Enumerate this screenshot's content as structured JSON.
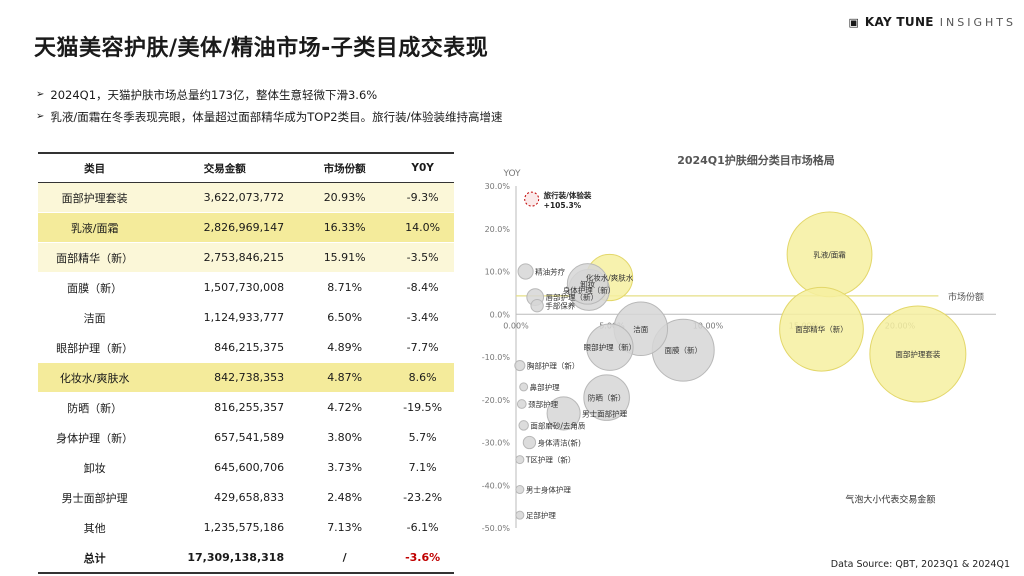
{
  "title": "天猫美容护肤/美体/精油市场-子类目成交表现",
  "brand": {
    "name": "KAY TUNE",
    "sub": "INSIGHTS",
    "icon": "kt-logo-icon"
  },
  "bullets": [
    "2024Q1，天猫护肤市场总量约173亿，整体生意轻微下滑3.6%",
    "乳液/面霜在冬季表现亮眼，体量超过面部精华成为TOP2类目。旅行装/体验装维持高增速"
  ],
  "bullet_marker": "➢",
  "table": {
    "headers": [
      "类目",
      "交易金额",
      "市场份额",
      "Y0Y"
    ],
    "rows": [
      {
        "cat": "面部护理套装",
        "amount": "3,622,073,772",
        "share": "20.93%",
        "yoy": "-9.3%",
        "hl": "light"
      },
      {
        "cat": "乳液/面霜",
        "amount": "2,826,969,147",
        "share": "16.33%",
        "yoy": "14.0%",
        "hl": "strong"
      },
      {
        "cat": "面部精华（新）",
        "amount": "2,753,846,215",
        "share": "15.91%",
        "yoy": "-3.5%",
        "hl": "light"
      },
      {
        "cat": "面膜（新）",
        "amount": "1,507,730,008",
        "share": "8.71%",
        "yoy": "-8.4%",
        "hl": ""
      },
      {
        "cat": "洁面",
        "amount": "1,124,933,777",
        "share": "6.50%",
        "yoy": "-3.4%",
        "hl": ""
      },
      {
        "cat": "眼部护理（新）",
        "amount": "846,215,375",
        "share": "4.89%",
        "yoy": "-7.7%",
        "hl": ""
      },
      {
        "cat": "化妆水/爽肤水",
        "amount": "842,738,353",
        "share": "4.87%",
        "yoy": "8.6%",
        "hl": "strong"
      },
      {
        "cat": "防晒（新）",
        "amount": "816,255,357",
        "share": "4.72%",
        "yoy": "-19.5%",
        "hl": ""
      },
      {
        "cat": "身体护理（新）",
        "amount": "657,541,589",
        "share": "3.80%",
        "yoy": "5.7%",
        "hl": ""
      },
      {
        "cat": "卸妆",
        "amount": "645,600,706",
        "share": "3.73%",
        "yoy": "7.1%",
        "hl": ""
      },
      {
        "cat": "男士面部护理",
        "amount": "429,658,833",
        "share": "2.48%",
        "yoy": "-23.2%",
        "hl": ""
      },
      {
        "cat": "其他",
        "amount": "1,235,575,186",
        "share": "7.13%",
        "yoy": "-6.1%",
        "hl": ""
      }
    ],
    "total": {
      "cat": "总计",
      "amount": "17,309,138,318",
      "share": "/",
      "yoy": "-3.6%"
    }
  },
  "chart_data": {
    "type": "scatter",
    "title": "2024Q1护肤细分类目市场格局",
    "xlabel": "市场份额",
    "ylabel": "YOY",
    "size_note": "气泡大小代表交易金额",
    "xlim": [
      0,
      0.25
    ],
    "ylim": [
      -0.5,
      0.3
    ],
    "x_ticks": [
      "0.00%",
      "5.00%",
      "10.00%",
      "15.00%",
      "20.00%"
    ],
    "x_tick_values": [
      0,
      0.05,
      0.1,
      0.15,
      0.2
    ],
    "y_ticks": [
      "30.0%",
      "20.0%",
      "10.0%",
      "0.0%",
      "-10.0%",
      "-20.0%",
      "-30.0%",
      "-40.0%",
      "-50.0%"
    ],
    "y_tick_values": [
      0.3,
      0.2,
      0.1,
      0,
      -0.1,
      -0.2,
      -0.3,
      -0.4,
      -0.5
    ],
    "colors": {
      "highlight_fill": "#f6f0a0",
      "highlight_stroke": "#e3d76a",
      "normal_fill": "#d6d6d6",
      "normal_stroke": "#b8b8b8",
      "outlier_stroke": "#c00000",
      "ref_line": "#e6df86"
    },
    "reference_line_y": 0.043,
    "points": [
      {
        "label": "面部护理套装",
        "x": 0.2093,
        "y": -0.093,
        "amount": 3622073772,
        "hl": true
      },
      {
        "label": "乳液/面霜",
        "x": 0.1633,
        "y": 0.14,
        "amount": 2826969147,
        "hl": true
      },
      {
        "label": "面部精华（新）",
        "x": 0.1591,
        "y": -0.035,
        "amount": 2753846215,
        "hl": true
      },
      {
        "label": "面膜（新）",
        "x": 0.0871,
        "y": -0.084,
        "amount": 1507730008,
        "hl": false
      },
      {
        "label": "洁面",
        "x": 0.065,
        "y": -0.034,
        "amount": 1124933777,
        "hl": false
      },
      {
        "label": "眼部护理（新）",
        "x": 0.0489,
        "y": -0.077,
        "amount": 846215375,
        "hl": false
      },
      {
        "label": "化妆水/爽肤水",
        "x": 0.0487,
        "y": 0.086,
        "amount": 842738353,
        "hl": true
      },
      {
        "label": "防晒（新）",
        "x": 0.0472,
        "y": -0.195,
        "amount": 816255357,
        "hl": false
      },
      {
        "label": "身体护理（新）",
        "x": 0.038,
        "y": 0.057,
        "amount": 657541589,
        "hl": false
      },
      {
        "label": "卸妆",
        "x": 0.0373,
        "y": 0.071,
        "amount": 645600706,
        "hl": false
      },
      {
        "label": "男士面部护理",
        "x": 0.0248,
        "y": -0.232,
        "amount": 429658833,
        "hl": false
      },
      {
        "label": "精油芳疗",
        "x": 0.005,
        "y": 0.1,
        "amount": 90000000,
        "hl": false
      },
      {
        "label": "唇部护理（新）",
        "x": 0.01,
        "y": 0.04,
        "amount": 110000000,
        "hl": false
      },
      {
        "label": "手部保养",
        "x": 0.011,
        "y": 0.02,
        "amount": 60000000,
        "hl": false
      },
      {
        "label": "胸部护理（新）",
        "x": 0.002,
        "y": -0.12,
        "amount": 40000000,
        "hl": false
      },
      {
        "label": "鼻部护理",
        "x": 0.004,
        "y": -0.17,
        "amount": 25000000,
        "hl": false
      },
      {
        "label": "颈部护理",
        "x": 0.003,
        "y": -0.21,
        "amount": 30000000,
        "hl": false
      },
      {
        "label": "面部磨砂/去角质",
        "x": 0.004,
        "y": -0.26,
        "amount": 35000000,
        "hl": false
      },
      {
        "label": "身体清洁(新)",
        "x": 0.007,
        "y": -0.3,
        "amount": 60000000,
        "hl": false
      },
      {
        "label": "T区护理（新）",
        "x": 0.002,
        "y": -0.34,
        "amount": 20000000,
        "hl": false
      },
      {
        "label": "男士身体护理",
        "x": 0.002,
        "y": -0.41,
        "amount": 15000000,
        "hl": false
      },
      {
        "label": "足部护理",
        "x": 0.002,
        "y": -0.47,
        "amount": 15000000,
        "hl": false
      }
    ],
    "outlier": {
      "label": "旅行装/体验装",
      "value_label": "+105.3%",
      "x": 0.004,
      "y": 0.26,
      "amount": 80000000
    }
  },
  "source": "Data Source: QBT, 2023Q1 & 2024Q1"
}
